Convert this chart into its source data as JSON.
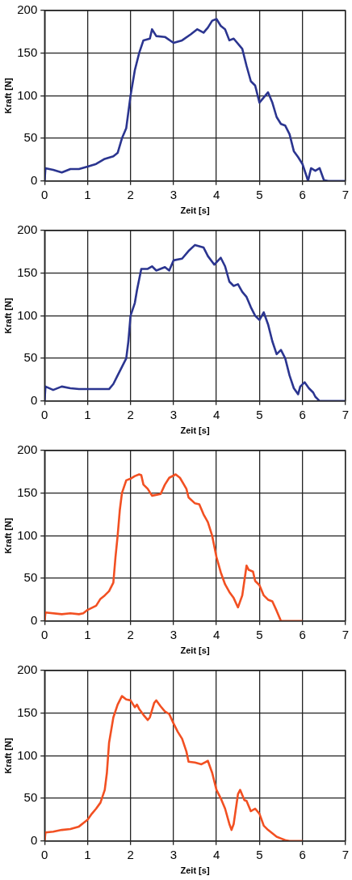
{
  "chart_data": [
    {
      "type": "line",
      "xlabel": "Zeit [s]",
      "ylabel": "Kraft [N]",
      "color": "#2b3590",
      "marker": "none",
      "grid": true,
      "xlim": [
        0,
        7
      ],
      "ylim": [
        0,
        200
      ],
      "xticks": [
        0,
        1,
        2,
        3,
        4,
        5,
        6,
        7
      ],
      "yticks": [
        0,
        50,
        100,
        150,
        200
      ],
      "x": [
        0,
        0.02,
        0.2,
        0.4,
        0.6,
        0.8,
        1,
        1.2,
        1.4,
        1.6,
        1.7,
        1.8,
        1.9,
        2.0,
        2.1,
        2.2,
        2.3,
        2.45,
        2.5,
        2.6,
        2.8,
        3.0,
        3.2,
        3.4,
        3.55,
        3.7,
        3.8,
        3.9,
        4.0,
        4.1,
        4.2,
        4.3,
        4.4,
        4.6,
        4.7,
        4.8,
        4.9,
        5.0,
        5.2,
        5.3,
        5.4,
        5.5,
        5.6,
        5.7,
        5.8,
        5.9,
        6.0,
        6.1,
        6.13,
        6.2,
        6.3,
        6.4,
        6.5,
        6.6,
        7.0
      ],
      "values": [
        0,
        15,
        13,
        10,
        14,
        14,
        17,
        20,
        26,
        29,
        33,
        50,
        62,
        100,
        130,
        150,
        165,
        167,
        178,
        170,
        169,
        162,
        165,
        172,
        178,
        174,
        180,
        188,
        190,
        182,
        178,
        165,
        167,
        155,
        135,
        117,
        112,
        92,
        104,
        92,
        75,
        67,
        65,
        55,
        35,
        28,
        20,
        5,
        0,
        15,
        12,
        15,
        1,
        0,
        0
      ]
    },
    {
      "type": "line",
      "xlabel": "Zeit [s]",
      "ylabel": "Kraft [N]",
      "color": "#2b3590",
      "marker": "none",
      "grid": true,
      "xlim": [
        0,
        7
      ],
      "ylim": [
        0,
        200
      ],
      "xticks": [
        0,
        1,
        2,
        3,
        4,
        5,
        6,
        7
      ],
      "yticks": [
        0,
        50,
        100,
        150,
        200
      ],
      "x": [
        0,
        0.02,
        0.2,
        0.4,
        0.6,
        0.8,
        1.0,
        1.2,
        1.5,
        1.6,
        1.7,
        1.8,
        1.9,
        1.95,
        2.0,
        2.1,
        2.15,
        2.25,
        2.4,
        2.5,
        2.6,
        2.8,
        2.9,
        3.0,
        3.2,
        3.35,
        3.5,
        3.7,
        3.8,
        3.95,
        4.1,
        4.2,
        4.3,
        4.4,
        4.5,
        4.6,
        4.7,
        4.8,
        4.9,
        5.0,
        5.1,
        5.2,
        5.3,
        5.4,
        5.5,
        5.6,
        5.7,
        5.8,
        5.9,
        5.95,
        6.05,
        6.15,
        6.25,
        6.3,
        6.4,
        7.0
      ],
      "values": [
        0,
        17,
        13,
        17,
        15,
        14,
        14,
        14,
        14,
        20,
        30,
        40,
        50,
        70,
        100,
        115,
        130,
        155,
        155,
        158,
        153,
        157,
        153,
        165,
        167,
        176,
        183,
        180,
        170,
        160,
        168,
        158,
        140,
        135,
        137,
        128,
        122,
        110,
        100,
        95,
        104,
        90,
        70,
        55,
        60,
        50,
        30,
        15,
        8,
        17,
        22,
        15,
        10,
        5,
        0,
        0
      ]
    },
    {
      "type": "line",
      "xlabel": "Zeit [s]",
      "ylabel": "Kraft [N]",
      "color": "#f25022",
      "marker": "none",
      "grid": true,
      "xlim": [
        0,
        7
      ],
      "ylim": [
        0,
        200
      ],
      "xticks": [
        0,
        1,
        2,
        3,
        4,
        5,
        6,
        7
      ],
      "yticks": [
        0,
        50,
        100,
        150,
        200
      ],
      "x": [
        0,
        0.02,
        0.4,
        0.6,
        0.8,
        0.9,
        1.0,
        1.2,
        1.3,
        1.4,
        1.5,
        1.6,
        1.65,
        1.7,
        1.75,
        1.8,
        1.9,
        2.0,
        2.1,
        2.2,
        2.25,
        2.3,
        2.4,
        2.5,
        2.7,
        2.8,
        2.9,
        3.05,
        3.15,
        3.3,
        3.35,
        3.5,
        3.6,
        3.7,
        3.8,
        3.9,
        4.0,
        4.1,
        4.2,
        4.3,
        4.4,
        4.5,
        4.6,
        4.7,
        4.75,
        4.85,
        4.9,
        5.0,
        5.1,
        5.2,
        5.3,
        5.4,
        5.5,
        6.0
      ],
      "values": [
        0,
        10,
        8,
        9,
        8,
        9,
        13,
        18,
        26,
        30,
        35,
        45,
        75,
        100,
        130,
        150,
        165,
        167,
        170,
        172,
        171,
        160,
        155,
        147,
        149,
        160,
        168,
        172,
        168,
        155,
        145,
        138,
        137,
        125,
        116,
        100,
        75,
        57,
        43,
        34,
        27,
        16,
        30,
        65,
        60,
        58,
        47,
        42,
        30,
        25,
        23,
        12,
        0,
        0
      ]
    },
    {
      "type": "line",
      "xlabel": "Zeit [s]",
      "ylabel": "Kraft [N]",
      "color": "#f25022",
      "marker": "none",
      "grid": true,
      "xlim": [
        0,
        7
      ],
      "ylim": [
        0,
        200
      ],
      "xticks": [
        0,
        1,
        2,
        3,
        4,
        5,
        6,
        7
      ],
      "yticks": [
        0,
        50,
        100,
        150,
        200
      ],
      "x": [
        0,
        0.02,
        0.2,
        0.4,
        0.6,
        0.8,
        1.0,
        1.1,
        1.2,
        1.3,
        1.4,
        1.45,
        1.5,
        1.55,
        1.6,
        1.7,
        1.8,
        1.9,
        2.0,
        2.1,
        2.15,
        2.2,
        2.3,
        2.4,
        2.45,
        2.55,
        2.6,
        2.7,
        2.8,
        2.9,
        3.0,
        3.1,
        3.2,
        3.3,
        3.35,
        3.5,
        3.65,
        3.8,
        3.9,
        4.0,
        4.1,
        4.2,
        4.3,
        4.35,
        4.4,
        4.5,
        4.55,
        4.65,
        4.7,
        4.8,
        4.9,
        5.0,
        5.1,
        5.2,
        5.3,
        5.4,
        5.5,
        5.6,
        5.7,
        6.0
      ],
      "values": [
        0,
        10,
        11,
        13,
        14,
        17,
        25,
        32,
        38,
        45,
        60,
        80,
        115,
        130,
        145,
        160,
        170,
        166,
        165,
        157,
        160,
        155,
        148,
        142,
        145,
        162,
        165,
        158,
        152,
        149,
        138,
        128,
        120,
        105,
        93,
        92,
        90,
        94,
        80,
        60,
        50,
        38,
        20,
        13,
        20,
        55,
        60,
        48,
        47,
        35,
        38,
        32,
        18,
        13,
        9,
        5,
        3,
        1,
        0,
        0
      ]
    }
  ]
}
